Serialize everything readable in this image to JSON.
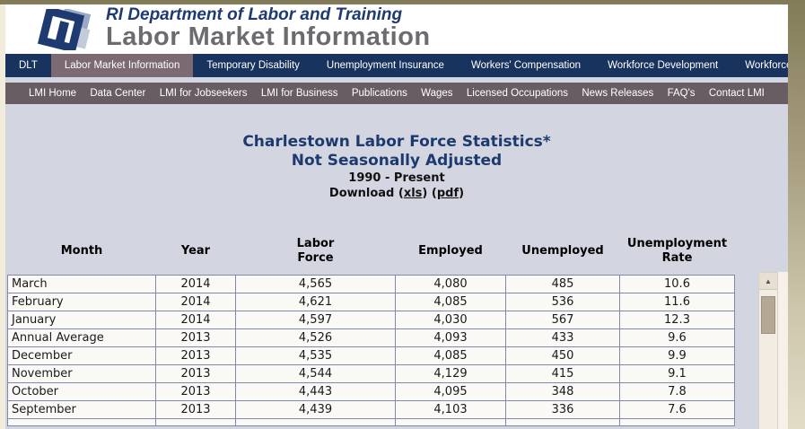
{
  "header": {
    "line1": "RI Department of Labor and Training",
    "line2": "Labor Market Information"
  },
  "nav_primary": {
    "items": [
      {
        "label": "DLT",
        "active": false
      },
      {
        "label": "Labor Market Information",
        "active": true
      },
      {
        "label": "Temporary Disability",
        "active": false
      },
      {
        "label": "Unemployment Insurance",
        "active": false
      },
      {
        "label": "Workers' Compensation",
        "active": false
      },
      {
        "label": "Workforce Development",
        "active": false
      },
      {
        "label": "Workforce Regulation and Safety",
        "active": false
      }
    ]
  },
  "nav_secondary": {
    "items": [
      "LMI Home",
      "Data Center",
      "LMI for Jobseekers",
      "LMI for Business",
      "Publications",
      "Wages",
      "Licensed Occupations",
      "News Releases",
      "FAQ's",
      "Contact LMI"
    ]
  },
  "content": {
    "title_line1": "Charlestown Labor Force Statistics*",
    "title_line2": "Not Seasonally Adjusted",
    "subtitle": "1990 - Present",
    "download": {
      "prefix": "Download (",
      "link_xls": "xls",
      "separator": ") (",
      "link_pdf": "pdf",
      "suffix": ")"
    }
  },
  "table": {
    "columns": [
      "Month",
      "Year",
      "Labor\nForce",
      "Employed",
      "Unemployed",
      "Unemployment\nRate"
    ],
    "rows": [
      [
        "March",
        "2014",
        "4,565",
        "4,080",
        "485",
        "10.6"
      ],
      [
        "February",
        "2014",
        "4,621",
        "4,085",
        "536",
        "11.6"
      ],
      [
        "January",
        "2014",
        "4,597",
        "4,030",
        "567",
        "12.3"
      ],
      [
        "Annual Average",
        "2013",
        "4,526",
        "4,093",
        "433",
        "9.6"
      ],
      [
        "December",
        "2013",
        "4,535",
        "4,085",
        "450",
        "9.9"
      ],
      [
        "November",
        "2013",
        "4,544",
        "4,129",
        "415",
        "9.1"
      ],
      [
        "October",
        "2013",
        "4,443",
        "4,095",
        "348",
        "7.8"
      ],
      [
        "September",
        "2013",
        "4,439",
        "4,103",
        "336",
        "7.6"
      ]
    ],
    "partial_next_row": true,
    "scrollbar": {
      "up_arrow": "▲"
    }
  },
  "colors": {
    "nav_primary_bg": "#17335e",
    "nav_active_bg": "#7b6a71",
    "nav_secondary_bg": "#695d64",
    "content_bg": "#d3d5e1",
    "title_navy": "#1c3a6e",
    "header_gray": "#6b6c6f",
    "cell_border": "#8089a9",
    "cell_bg": "#fbf9f5",
    "outer_tan": "#a89f80",
    "scroll_thumb": "#b4a995"
  }
}
